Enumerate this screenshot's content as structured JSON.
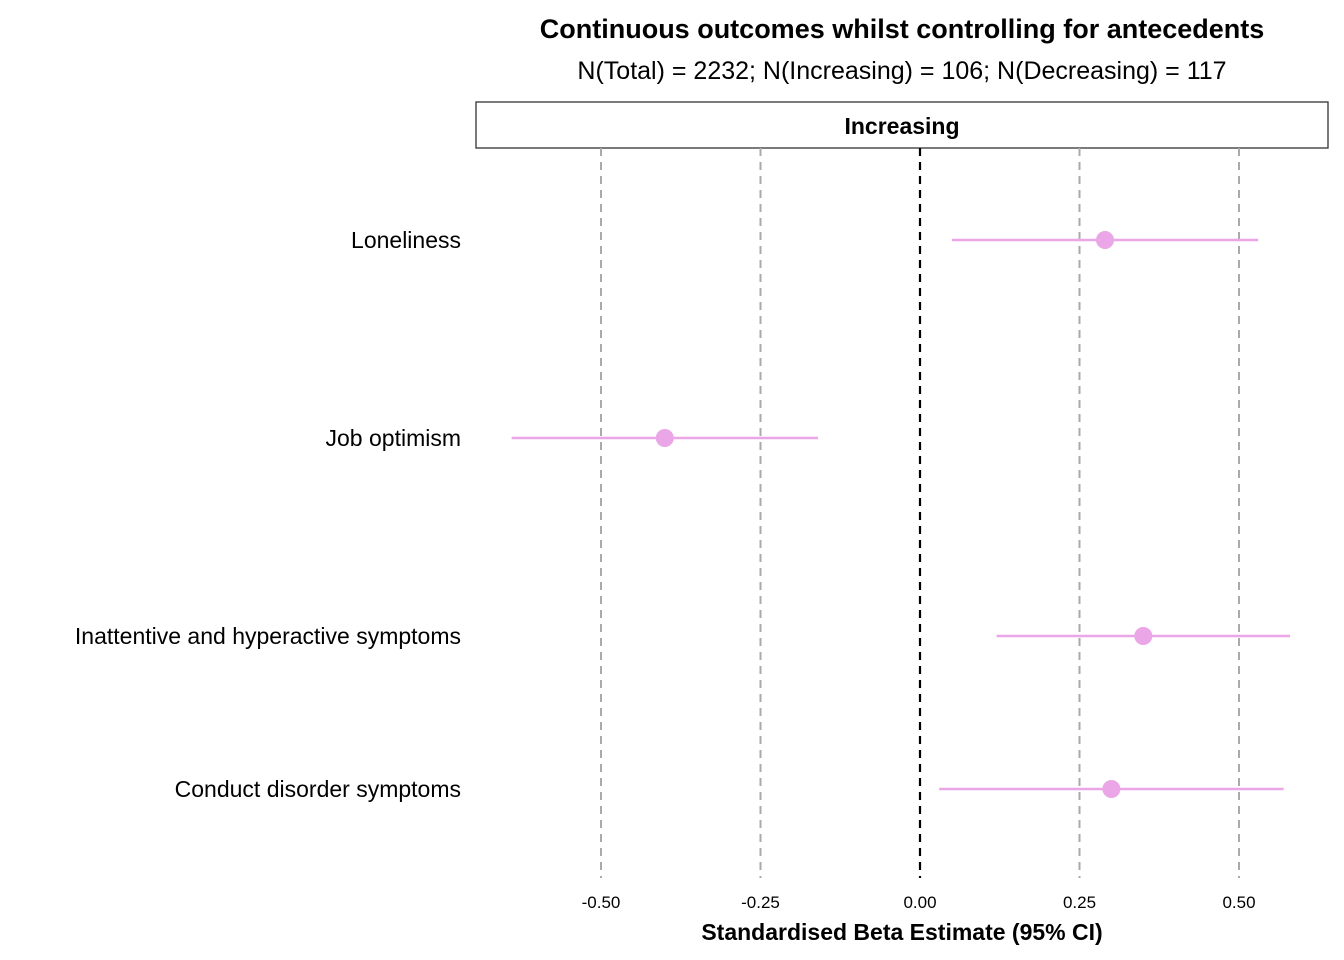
{
  "chart_data": {
    "type": "scatter",
    "subtype": "forest-plot",
    "title": "Continuous outcomes whilst controlling for antecedents",
    "subtitle": "N(Total) = 2232; N(Increasing) = 106; N(Decreasing) = 117",
    "facet": "Increasing",
    "xlabel": "Standardised Beta Estimate (95% CI)",
    "ylabel": "",
    "xlim": [
      -0.66,
      0.62
    ],
    "x_ticks": [
      "-0.50",
      "-0.25",
      "0.00",
      "0.25",
      "0.50"
    ],
    "x_tick_values": [
      -0.5,
      -0.25,
      0,
      0.25,
      0.5
    ],
    "reference_line": 0,
    "grid": "vertical dashed at x ticks",
    "legend": "none",
    "point_color": "#EAA6E6",
    "series": [
      {
        "points": [
          {
            "label": "Loneliness",
            "estimate": 0.29,
            "ci_low": 0.05,
            "ci_high": 0.53
          },
          {
            "label": "Job optimism",
            "estimate": -0.4,
            "ci_low": -0.64,
            "ci_high": -0.16
          },
          {
            "label": "Inattentive and hyperactive symptoms",
            "estimate": 0.35,
            "ci_low": 0.12,
            "ci_high": 0.58
          },
          {
            "label": "Conduct disorder symptoms",
            "estimate": 0.3,
            "ci_low": 0.03,
            "ci_high": 0.57
          }
        ]
      }
    ]
  }
}
